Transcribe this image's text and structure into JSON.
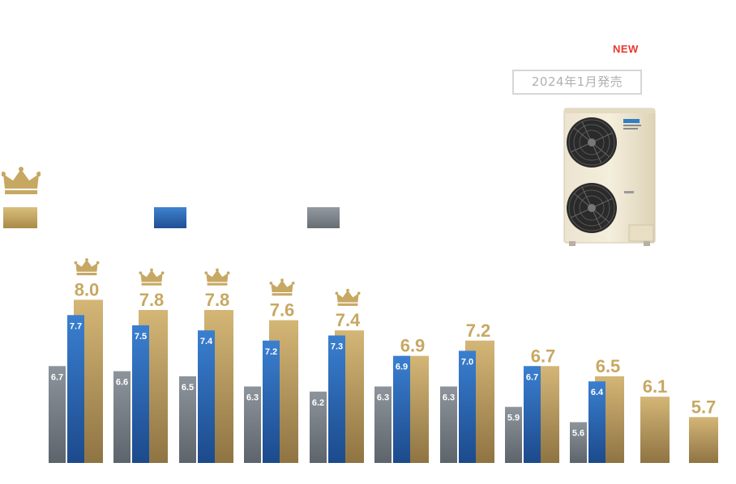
{
  "badge": {
    "new_label": "NEW",
    "release_label": "2024年1月発売"
  },
  "colors": {
    "gold": "#c7a863",
    "blue": "#2d6bb8",
    "gray": "#7d858c",
    "new_red": "#e8382d"
  },
  "icons": {
    "crown": "crown-icon",
    "product": "outdoor-unit-image"
  },
  "chart_data": {
    "type": "bar",
    "categories": [
      "",
      "",
      "",
      "",
      "",
      "",
      "",
      "",
      "",
      "",
      ""
    ],
    "series": [
      {
        "color": "gray",
        "values": [
          6.7,
          6.6,
          6.5,
          6.3,
          6.2,
          6.3,
          6.3,
          5.9,
          5.6,
          null,
          null
        ]
      },
      {
        "color": "blue",
        "values": [
          7.7,
          7.5,
          7.4,
          7.2,
          7.3,
          6.9,
          7.0,
          6.7,
          6.4,
          null,
          null
        ]
      },
      {
        "color": "gold",
        "values": [
          8.0,
          7.8,
          7.8,
          7.6,
          7.4,
          6.9,
          7.2,
          6.7,
          6.5,
          6.1,
          5.7
        ]
      }
    ],
    "crowned": [
      true,
      true,
      true,
      true,
      true,
      false,
      false,
      false,
      false,
      false,
      false
    ],
    "ylim": [
      4.8,
      8.2
    ],
    "title": "",
    "xlabel": "",
    "ylabel": "",
    "grid": false,
    "legend": "top-left"
  }
}
